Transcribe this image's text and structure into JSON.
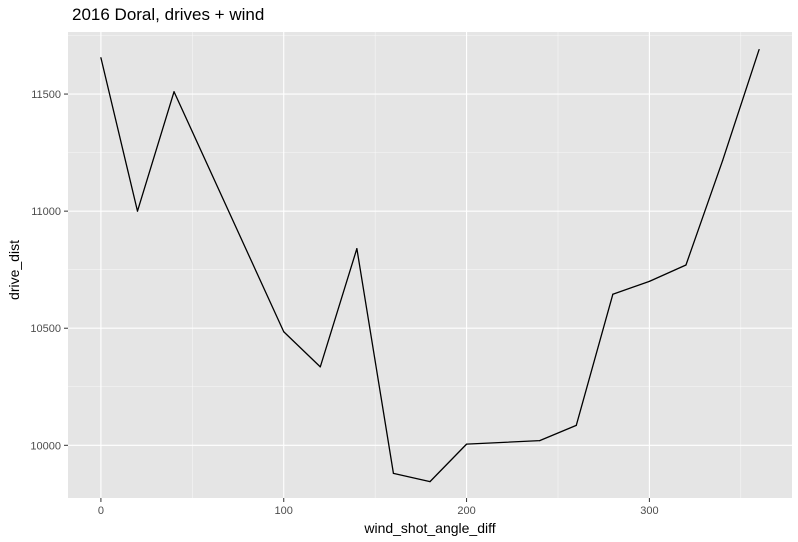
{
  "chart_data": {
    "type": "line",
    "title": "2016 Doral, drives + wind",
    "xlabel": "wind_shot_angle_diff",
    "ylabel": "drive_dist",
    "xlim": [
      -18,
      378
    ],
    "ylim": [
      9775,
      11765
    ],
    "x_ticks": [
      0,
      100,
      200,
      300
    ],
    "x_tick_labels": [
      "0",
      "100",
      "200",
      "300"
    ],
    "y_ticks": [
      10000,
      10500,
      11000,
      11500
    ],
    "y_tick_labels": [
      "10000",
      "10500",
      "11000",
      "11500"
    ],
    "grid": true,
    "background": "#e5e5e5",
    "grid_color": "#ffffff",
    "line_color": "#000000",
    "series": [
      {
        "x": [
          0,
          20,
          40,
          100,
          120,
          140,
          160,
          180,
          200,
          240,
          260,
          280,
          300,
          320,
          340,
          360
        ],
        "y": [
          11655,
          11000,
          11510,
          10485,
          10335,
          10840,
          9880,
          9845,
          10005,
          10020,
          10085,
          10645,
          10700,
          10770,
          11215,
          11690
        ]
      }
    ]
  }
}
